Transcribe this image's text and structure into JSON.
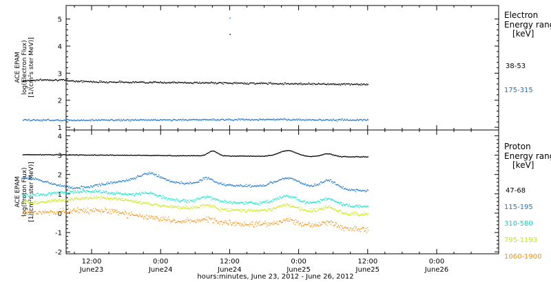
{
  "chart_data": [
    {
      "type": "scatter",
      "ylabel_lines": [
        "ACE EPAM",
        "log(Electron Flux)",
        "[1/(cm²s ster MeV)]"
      ],
      "ylim": [
        0.9,
        5.5
      ],
      "yticks": [
        1,
        2,
        3,
        4,
        5
      ],
      "legend_title": [
        "Electron",
        "Energy range",
        "[keV]"
      ],
      "series": [
        {
          "name": "38-53",
          "color": "#000000",
          "kind": "electron_low"
        },
        {
          "name": "175-315",
          "color": "#1874cd",
          "kind": "electron_high"
        }
      ]
    },
    {
      "type": "scatter",
      "ylabel_lines": [
        "ACE EPAM",
        "log(Proton Flux)",
        "[1/(cm²s ster MeV)]"
      ],
      "ylim": [
        -2.1,
        4.3
      ],
      "yticks": [
        -2,
        -1,
        0,
        1,
        2,
        3,
        4
      ],
      "legend_title": [
        "Proton",
        "Energy range",
        "[keV]"
      ],
      "series": [
        {
          "name": "47-68",
          "color": "#000000",
          "kind": "p1"
        },
        {
          "name": "115-195",
          "color": "#1874cd",
          "kind": "p2"
        },
        {
          "name": "310-580",
          "color": "#00e5cc",
          "kind": "p3"
        },
        {
          "name": "795-1193",
          "color": "#c8e600",
          "kind": "p4"
        },
        {
          "name": "1060-1900",
          "color": "#ff8c00",
          "kind": "p5"
        }
      ]
    }
  ],
  "x_axis": {
    "start_hours": 0,
    "end_hours": 72,
    "data_end_hours": 60,
    "ticks": [
      {
        "hour": 12,
        "time": "12:00",
        "date": "June23"
      },
      {
        "hour": 24,
        "time": "0:00",
        "date": "June24"
      },
      {
        "hour": 36,
        "time": "12:00",
        "date": "June24"
      },
      {
        "hour": 48,
        "time": "0:00",
        "date": "June25"
      },
      {
        "hour": 60,
        "time": "12:00",
        "date": "June25"
      },
      {
        "hour": 72,
        "time": "0:00",
        "date": "June26"
      }
    ],
    "xlabel": "hours:minutes, June 23, 2012 - June 26, 2012"
  }
}
